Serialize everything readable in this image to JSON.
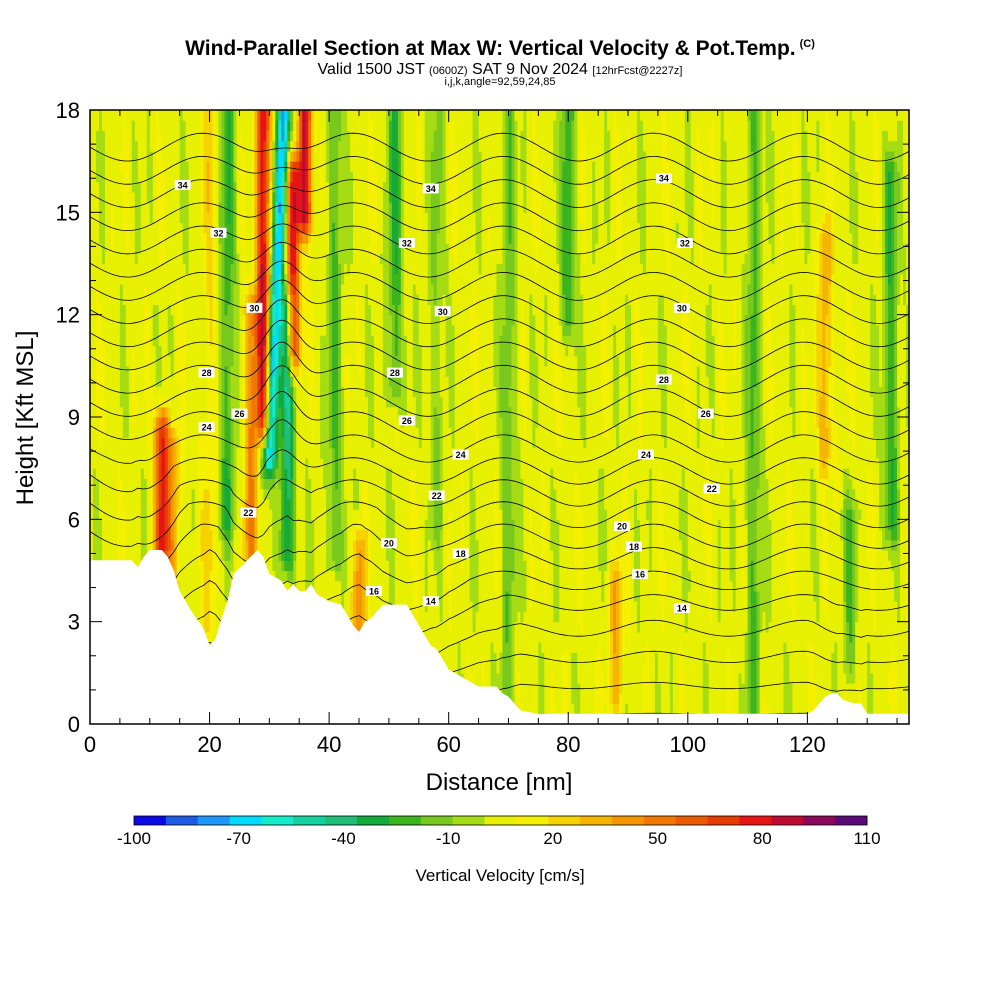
{
  "header": {
    "title": "Wind-Parallel Section at Max W: Vertical Velocity & Pot.Temp.",
    "copyright": "(C)",
    "valid_prefix": "Valid 1500 JST",
    "valid_utc": "(0600Z)",
    "valid_date": "SAT 9 Nov 2024",
    "forecast": "[12hrFcst@2227z]",
    "indices": "i,j,k,angle=92,59,24,85"
  },
  "chart_data": {
    "type": "heatmap",
    "xlabel": "Distance [nm]",
    "ylabel": "Height [Kft MSL]",
    "xlim": [
      0,
      137
    ],
    "ylim": [
      0,
      18
    ],
    "x_ticks": [
      "0",
      "20",
      "40",
      "60",
      "80",
      "100",
      "120"
    ],
    "x_tick_values": [
      0,
      20,
      40,
      60,
      80,
      100,
      120
    ],
    "y_ticks": [
      "0",
      "3",
      "6",
      "9",
      "12",
      "15",
      "18"
    ],
    "y_tick_values": [
      0,
      3,
      6,
      9,
      12,
      15,
      18
    ],
    "terrain": {
      "x": [
        0,
        7,
        8,
        9,
        10,
        12,
        13,
        14,
        15,
        16,
        17,
        19,
        20,
        21,
        22,
        23,
        24,
        28,
        29,
        30,
        32,
        33,
        34,
        35,
        36,
        37,
        38,
        39,
        40,
        42,
        43,
        44,
        45,
        46,
        47,
        48,
        49,
        50,
        51,
        53,
        54,
        55,
        56,
        57,
        58,
        59,
        60,
        62,
        63,
        64,
        65,
        68,
        69,
        70,
        71,
        72,
        75,
        80,
        90,
        100,
        110,
        120,
        121,
        122,
        123,
        124,
        125,
        126,
        128,
        129,
        130,
        131,
        134,
        137
      ],
      "y": [
        4.8,
        4.8,
        4.6,
        4.9,
        5.1,
        5.1,
        4.9,
        4.5,
        3.9,
        3.6,
        3.3,
        2.8,
        2.3,
        2.5,
        3.1,
        3.6,
        4.4,
        5.1,
        4.9,
        4.4,
        4.2,
        3.9,
        4.1,
        3.9,
        3.9,
        4.1,
        3.8,
        3.7,
        3.6,
        3.5,
        3.2,
        2.9,
        2.7,
        3.0,
        3.1,
        3.3,
        3.5,
        3.5,
        3.5,
        3.5,
        3.2,
        2.9,
        2.6,
        2.3,
        2.2,
        1.9,
        1.6,
        1.4,
        1.3,
        1.2,
        1.1,
        1.1,
        0.9,
        0.8,
        0.6,
        0.4,
        0.3,
        0.3,
        0.3,
        0.3,
        0.3,
        0.3,
        0.4,
        0.6,
        0.8,
        0.9,
        0.9,
        0.7,
        0.6,
        0.6,
        0.3,
        0.3,
        0.3,
        0.3
      ]
    },
    "velocity_field_samples": [
      {
        "x": 12,
        "w": 70,
        "z_range": [
          5.2,
          8.5
        ]
      },
      {
        "x": 14,
        "w": 30,
        "z_range": [
          3,
          8
        ]
      },
      {
        "x": 20,
        "w": 15,
        "z_range": [
          3,
          18
        ]
      },
      {
        "x": 23,
        "w": -30,
        "z_range": [
          6,
          18
        ]
      },
      {
        "x": 27,
        "w": 40,
        "z_range": [
          5,
          12
        ]
      },
      {
        "x": 29,
        "w": 80,
        "z_range": [
          9,
          18
        ]
      },
      {
        "x": 31,
        "w": -80,
        "z_range": [
          8,
          18
        ]
      },
      {
        "x": 33,
        "w": -45,
        "z_range": [
          5,
          12
        ]
      },
      {
        "x": 34,
        "w": 70,
        "z_range": [
          11,
          16
        ]
      },
      {
        "x": 36,
        "w": 80,
        "z_range": [
          15,
          18
        ]
      },
      {
        "x": 41,
        "w": -25,
        "z_range": [
          5,
          18
        ]
      },
      {
        "x": 45,
        "w": 40,
        "z_range": [
          3,
          5
        ]
      },
      {
        "x": 51,
        "w": -30,
        "z_range": [
          10,
          18
        ]
      },
      {
        "x": 58,
        "w": -15,
        "z_range": [
          6,
          18
        ]
      },
      {
        "x": 70,
        "w": -20,
        "z_range": [
          0,
          18
        ]
      },
      {
        "x": 80,
        "w": -30,
        "z_range": [
          12,
          18
        ]
      },
      {
        "x": 88,
        "w": 30,
        "z_range": [
          1,
          4
        ]
      },
      {
        "x": 111,
        "w": -25,
        "z_range": [
          0,
          18
        ]
      },
      {
        "x": 123,
        "w": 30,
        "z_range": [
          8,
          14
        ]
      },
      {
        "x": 127,
        "w": -20,
        "z_range": [
          2,
          6
        ]
      },
      {
        "x": 134,
        "w": -30,
        "z_range": [
          6,
          16
        ]
      }
    ],
    "theta_contours": [
      {
        "label": "14",
        "label_positions": [
          [
            57,
            3.6
          ],
          [
            99,
            3.4
          ]
        ]
      },
      {
        "label": "16",
        "label_positions": [
          [
            47.5,
            3.9
          ],
          [
            92,
            4.4
          ]
        ]
      },
      {
        "label": "18",
        "label_positions": [
          [
            62,
            5.0
          ],
          [
            91,
            5.2
          ]
        ]
      },
      {
        "label": "20",
        "label_positions": [
          [
            50,
            5.3
          ],
          [
            89,
            5.8
          ]
        ]
      },
      {
        "label": "22",
        "label_positions": [
          [
            26.5,
            6.2
          ],
          [
            58,
            6.7
          ],
          [
            104,
            6.9
          ]
        ]
      },
      {
        "label": "24",
        "label_positions": [
          [
            19.5,
            8.7
          ],
          [
            62,
            7.9
          ],
          [
            93,
            7.9
          ]
        ]
      },
      {
        "label": "26",
        "label_positions": [
          [
            25,
            9.1
          ],
          [
            53,
            8.9
          ],
          [
            103,
            9.1
          ]
        ]
      },
      {
        "label": "28",
        "label_positions": [
          [
            19.5,
            10.3
          ],
          [
            51,
            10.3
          ],
          [
            96,
            10.1
          ]
        ]
      },
      {
        "label": "30",
        "label_positions": [
          [
            27.5,
            12.2
          ],
          [
            59,
            12.1
          ],
          [
            99,
            12.2
          ]
        ]
      },
      {
        "label": "32",
        "label_positions": [
          [
            21.5,
            14.4
          ],
          [
            53,
            14.1
          ],
          [
            99.5,
            14.1
          ]
        ]
      },
      {
        "label": "34",
        "label_positions": [
          [
            15.5,
            15.8
          ],
          [
            57,
            15.7
          ],
          [
            96,
            16.0
          ]
        ]
      }
    ],
    "colorbar": {
      "label": "Vertical Velocity [cm/s]",
      "range": [
        -100,
        110
      ],
      "ticks": [
        "-100",
        "-70",
        "-40",
        "-10",
        "20",
        "50",
        "80",
        "110"
      ],
      "tick_values": [
        -100,
        -70,
        -40,
        -10,
        20,
        50,
        80,
        110
      ],
      "colors": [
        "#0a0ae6",
        "#1e5ae6",
        "#1e96ff",
        "#00dcff",
        "#14ebc8",
        "#14d2a0",
        "#1ebe78",
        "#14aa3c",
        "#3cb41e",
        "#78c81e",
        "#a5dc14",
        "#e6f000",
        "#f5f000",
        "#f5d200",
        "#f5b400",
        "#f59600",
        "#f07800",
        "#eb5a00",
        "#e63c00",
        "#e61414",
        "#be0a32",
        "#8c0a5a",
        "#5a0a78"
      ]
    }
  }
}
